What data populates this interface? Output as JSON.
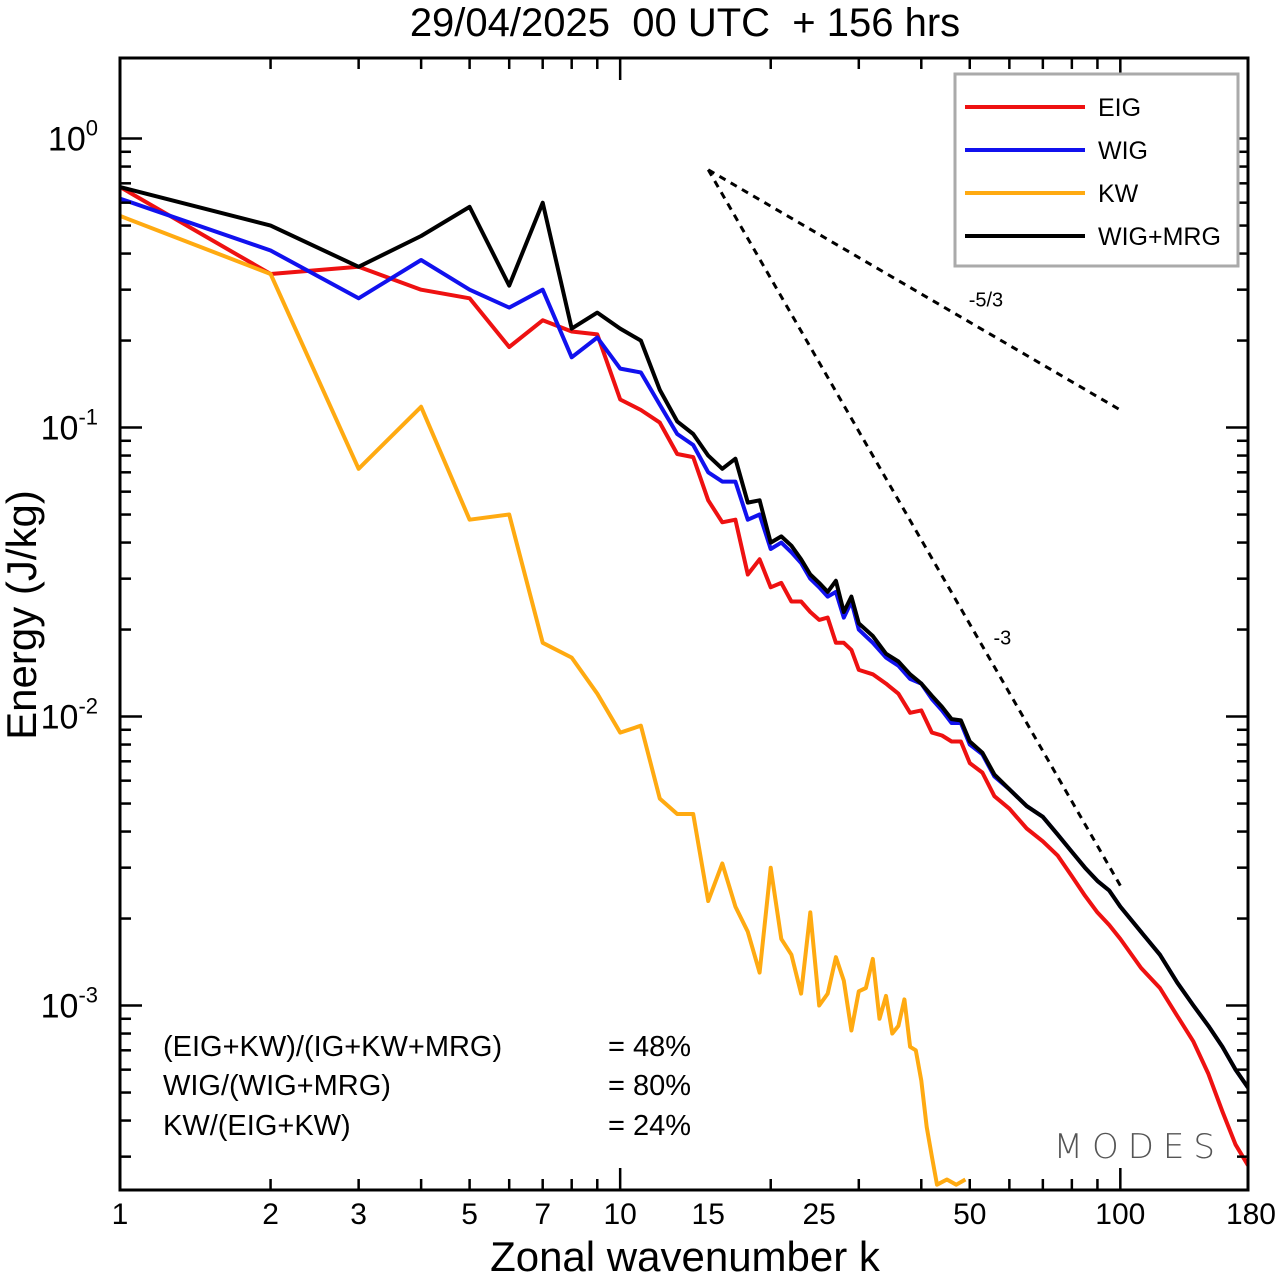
{
  "chart_data": {
    "type": "line",
    "title": "29/04/2025  00 UTC  + 156 hrs",
    "xlabel": "Zonal wavenumber k",
    "ylabel": "Energy (J/kg)",
    "x_scale": "log",
    "y_scale": "log",
    "xlim": [
      1,
      180
    ],
    "ylim": [
      0.00023,
      1.9
    ],
    "x_ticks": [
      {
        "value": 1,
        "label": "1"
      },
      {
        "value": 2,
        "label": "2"
      },
      {
        "value": 3,
        "label": "3"
      },
      {
        "value": 5,
        "label": "5"
      },
      {
        "value": 7,
        "label": "7"
      },
      {
        "value": 10,
        "label": "10"
      },
      {
        "value": 15,
        "label": "15"
      },
      {
        "value": 25,
        "label": "25"
      },
      {
        "value": 50,
        "label": "50"
      },
      {
        "value": 100,
        "label": "100"
      },
      {
        "value": 180,
        "label": "180"
      }
    ],
    "y_ticks": [
      {
        "value": 1,
        "base": "10",
        "exp": "0"
      },
      {
        "value": 0.1,
        "base": "10",
        "exp": "-1"
      },
      {
        "value": 0.01,
        "base": "10",
        "exp": "-2"
      },
      {
        "value": 0.001,
        "base": "10",
        "exp": "-3"
      }
    ],
    "legend_position": "top-right",
    "series": [
      {
        "name": "EIG",
        "color": "#ee1111",
        "points": [
          [
            1,
            0.68
          ],
          [
            2,
            0.34
          ],
          [
            3,
            0.36
          ],
          [
            4,
            0.3
          ],
          [
            5,
            0.28
          ],
          [
            6,
            0.19
          ],
          [
            7,
            0.235
          ],
          [
            8,
            0.215
          ],
          [
            9,
            0.21
          ],
          [
            10,
            0.125
          ],
          [
            11,
            0.115
          ],
          [
            12,
            0.104
          ],
          [
            13,
            0.081
          ],
          [
            14,
            0.079
          ],
          [
            15,
            0.056
          ],
          [
            16,
            0.047
          ],
          [
            17,
            0.048
          ],
          [
            18,
            0.031
          ],
          [
            19,
            0.035
          ],
          [
            20,
            0.028
          ],
          [
            21,
            0.029
          ],
          [
            22,
            0.025
          ],
          [
            23,
            0.025
          ],
          [
            24,
            0.023
          ],
          [
            25,
            0.0216
          ],
          [
            26,
            0.022
          ],
          [
            27,
            0.018
          ],
          [
            28,
            0.018
          ],
          [
            29,
            0.017
          ],
          [
            30,
            0.0145
          ],
          [
            32,
            0.014
          ],
          [
            34,
            0.013
          ],
          [
            36,
            0.012
          ],
          [
            38,
            0.0103
          ],
          [
            40,
            0.0105
          ],
          [
            42,
            0.0088
          ],
          [
            44,
            0.0086
          ],
          [
            46,
            0.0082
          ],
          [
            48,
            0.0082
          ],
          [
            50,
            0.0069
          ],
          [
            53,
            0.0064
          ],
          [
            56,
            0.0053
          ],
          [
            60,
            0.0048
          ],
          [
            65,
            0.0041
          ],
          [
            70,
            0.0037
          ],
          [
            75,
            0.0033
          ],
          [
            80,
            0.0028
          ],
          [
            85,
            0.0024
          ],
          [
            90,
            0.0021
          ],
          [
            95,
            0.0019
          ],
          [
            100,
            0.0017
          ],
          [
            110,
            0.00135
          ],
          [
            120,
            0.00115
          ],
          [
            130,
            0.00092
          ],
          [
            140,
            0.00075
          ],
          [
            150,
            0.00058
          ],
          [
            160,
            0.00043
          ],
          [
            170,
            0.00033
          ],
          [
            180,
            0.00028
          ]
        ]
      },
      {
        "name": "WIG",
        "color": "#1111ee",
        "points": [
          [
            1,
            0.62
          ],
          [
            2,
            0.41
          ],
          [
            3,
            0.28
          ],
          [
            4,
            0.38
          ],
          [
            5,
            0.3
          ],
          [
            6,
            0.26
          ],
          [
            7,
            0.3
          ],
          [
            8,
            0.175
          ],
          [
            9,
            0.205
          ],
          [
            10,
            0.16
          ],
          [
            11,
            0.155
          ],
          [
            12,
            0.12
          ],
          [
            13,
            0.095
          ],
          [
            14,
            0.087
          ],
          [
            15,
            0.07
          ],
          [
            16,
            0.065
          ],
          [
            17,
            0.065
          ],
          [
            18,
            0.048
          ],
          [
            19,
            0.05
          ],
          [
            20,
            0.038
          ],
          [
            21,
            0.04
          ],
          [
            22,
            0.037
          ],
          [
            23,
            0.034
          ],
          [
            24,
            0.03
          ],
          [
            25,
            0.028
          ],
          [
            26,
            0.026
          ],
          [
            27,
            0.027
          ],
          [
            28,
            0.022
          ],
          [
            29,
            0.025
          ],
          [
            30,
            0.02
          ],
          [
            32,
            0.018
          ],
          [
            34,
            0.016
          ],
          [
            36,
            0.015
          ],
          [
            38,
            0.0135
          ],
          [
            40,
            0.013
          ],
          [
            42,
            0.0115
          ],
          [
            44,
            0.0105
          ],
          [
            46,
            0.0095
          ],
          [
            48,
            0.0095
          ],
          [
            50,
            0.008
          ],
          [
            53,
            0.0074
          ],
          [
            56,
            0.0062
          ],
          [
            60,
            0.0056
          ],
          [
            65,
            0.0049
          ],
          [
            70,
            0.0045
          ],
          [
            75,
            0.0039
          ],
          [
            80,
            0.0034
          ],
          [
            85,
            0.003
          ],
          [
            90,
            0.0027
          ],
          [
            95,
            0.0025
          ],
          [
            100,
            0.0022
          ],
          [
            110,
            0.0018
          ],
          [
            120,
            0.0015
          ],
          [
            130,
            0.0012
          ],
          [
            140,
            0.001
          ],
          [
            150,
            0.00085
          ],
          [
            160,
            0.00072
          ],
          [
            170,
            0.0006
          ],
          [
            180,
            0.00052
          ]
        ]
      },
      {
        "name": "KW",
        "color": "#ffaa11",
        "points": [
          [
            1,
            0.54
          ],
          [
            2,
            0.34
          ],
          [
            3,
            0.072
          ],
          [
            4,
            0.118
          ],
          [
            5,
            0.048
          ],
          [
            6,
            0.05
          ],
          [
            7,
            0.018
          ],
          [
            8,
            0.016
          ],
          [
            9,
            0.012
          ],
          [
            10,
            0.0088
          ],
          [
            11,
            0.0093
          ],
          [
            12,
            0.0052
          ],
          [
            13,
            0.0046
          ],
          [
            14,
            0.0046
          ],
          [
            15,
            0.0023
          ],
          [
            16,
            0.0031
          ],
          [
            17,
            0.0022
          ],
          [
            18,
            0.0018
          ],
          [
            19,
            0.0013
          ],
          [
            20,
            0.003
          ],
          [
            21,
            0.0017
          ],
          [
            22,
            0.0015
          ],
          [
            23,
            0.0011
          ],
          [
            24,
            0.0021
          ],
          [
            25,
            0.001
          ],
          [
            26,
            0.0011
          ],
          [
            27,
            0.00147
          ],
          [
            28,
            0.00122
          ],
          [
            29,
            0.00082
          ],
          [
            30,
            0.00112
          ],
          [
            31,
            0.00115
          ],
          [
            32,
            0.00145
          ],
          [
            33,
            0.0009
          ],
          [
            34,
            0.00108
          ],
          [
            35,
            0.0008
          ],
          [
            36,
            0.00085
          ],
          [
            37,
            0.00105
          ],
          [
            38,
            0.00072
          ],
          [
            39,
            0.0007
          ],
          [
            40,
            0.00055
          ],
          [
            41,
            0.00038
          ],
          [
            42,
            0.0003
          ],
          [
            43,
            0.00024
          ],
          [
            45,
            0.00025
          ],
          [
            47,
            0.00024
          ],
          [
            49,
            0.00025
          ]
        ]
      },
      {
        "name": "WIG+MRG",
        "color": "#000000",
        "points": [
          [
            1,
            0.68
          ],
          [
            2,
            0.5
          ],
          [
            3,
            0.36
          ],
          [
            4,
            0.46
          ],
          [
            5,
            0.58
          ],
          [
            6,
            0.31
          ],
          [
            7,
            0.6
          ],
          [
            8,
            0.22
          ],
          [
            9,
            0.25
          ],
          [
            10,
            0.22
          ],
          [
            11,
            0.2
          ],
          [
            12,
            0.135
          ],
          [
            13,
            0.105
          ],
          [
            14,
            0.095
          ],
          [
            15,
            0.08
          ],
          [
            16,
            0.072
          ],
          [
            17,
            0.078
          ],
          [
            18,
            0.055
          ],
          [
            19,
            0.056
          ],
          [
            20,
            0.04
          ],
          [
            21,
            0.042
          ],
          [
            22,
            0.039
          ],
          [
            23,
            0.035
          ],
          [
            24,
            0.031
          ],
          [
            25,
            0.029
          ],
          [
            26,
            0.027
          ],
          [
            27,
            0.0295
          ],
          [
            28,
            0.023
          ],
          [
            29,
            0.026
          ],
          [
            30,
            0.021
          ],
          [
            32,
            0.019
          ],
          [
            34,
            0.0165
          ],
          [
            36,
            0.0155
          ],
          [
            38,
            0.014
          ],
          [
            40,
            0.013
          ],
          [
            42,
            0.0118
          ],
          [
            44,
            0.0108
          ],
          [
            46,
            0.0098
          ],
          [
            48,
            0.0097
          ],
          [
            50,
            0.0082
          ],
          [
            53,
            0.0075
          ],
          [
            56,
            0.0063
          ],
          [
            60,
            0.0056
          ],
          [
            65,
            0.0049
          ],
          [
            70,
            0.0045
          ],
          [
            75,
            0.0039
          ],
          [
            80,
            0.0034
          ],
          [
            85,
            0.003
          ],
          [
            90,
            0.0027
          ],
          [
            95,
            0.0025
          ],
          [
            100,
            0.0022
          ],
          [
            110,
            0.0018
          ],
          [
            120,
            0.0015
          ],
          [
            130,
            0.0012
          ],
          [
            140,
            0.001
          ],
          [
            150,
            0.00085
          ],
          [
            160,
            0.00072
          ],
          [
            170,
            0.0006
          ],
          [
            180,
            0.00052
          ]
        ]
      }
    ],
    "reference_slopes": [
      {
        "label": "-5/3",
        "start": [
          15,
          0.78
        ],
        "end": [
          100,
          0.115
        ]
      },
      {
        "label": "-3",
        "start": [
          15,
          0.78
        ],
        "end": [
          100,
          0.0026
        ]
      }
    ],
    "annotations": [
      {
        "label": "(EIG+KW)/(IG+KW+MRG)",
        "value": "= 48%"
      },
      {
        "label": "WIG/(WIG+MRG)",
        "value": "= 80%"
      },
      {
        "label": "KW/(EIG+KW)",
        "value": "= 24%"
      }
    ],
    "watermark": "MODES"
  }
}
